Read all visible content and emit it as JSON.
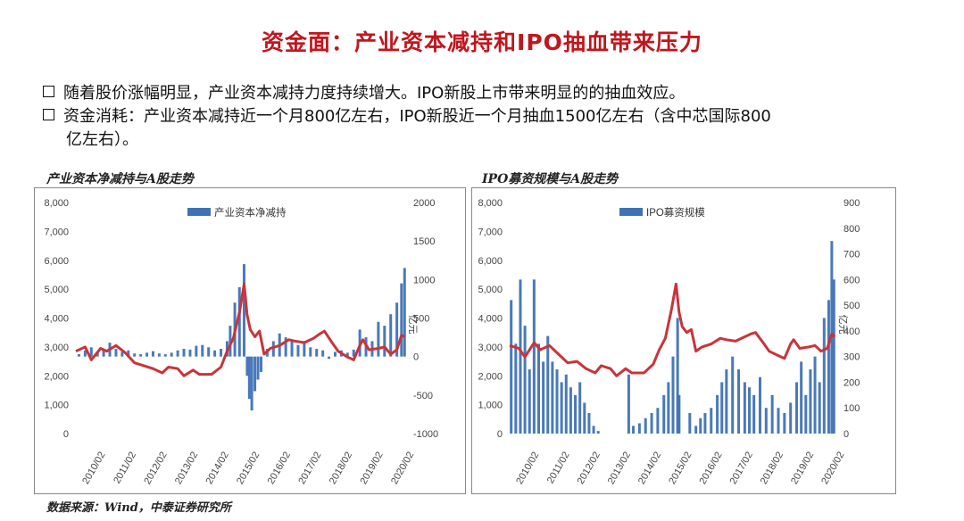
{
  "header": {
    "title": "资金面：产业资本减持和IPO抽血带来压力",
    "bullet1": "随着股价涨幅明显，产业资本减持力度持续增大。IPO新股上市带来明显的的抽血效应。",
    "bullet2": "资金消耗：产业资本减持近一个月800亿左右，IPO新股近一个月抽血1500亿左右（含中芯国际800",
    "bullet2_cont": "亿左右）。"
  },
  "source": "数据来源：Wind，中泰证券研究所",
  "chart_data": [
    {
      "type": "bar",
      "title": "产业资本净减持与A股走势",
      "x_ticks": [
        "2010/02",
        "2011/02",
        "2012/02",
        "2013/02",
        "2014/02",
        "2015/02",
        "2016/02",
        "2017/02",
        "2018/02",
        "2019/02",
        "2020/02"
      ],
      "y_left_ticks": [
        "8,000",
        "7,000",
        "6,000",
        "5,000",
        "4,000",
        "3,000",
        "2,000",
        "1,000",
        "0"
      ],
      "y_right_ticks": [
        "2000",
        "1500",
        "1000",
        "500",
        "0",
        "-500",
        "-1000"
      ],
      "y_right_label": "亿元",
      "ylim_left": [
        0,
        8000
      ],
      "ylim_right": [
        -1000,
        2000
      ],
      "legend": "产业资本净减持",
      "legend_position": "top-center",
      "bar_color": "#3f72b5",
      "line_color": "#c8343a",
      "bars": [
        [
          2010.1,
          30
        ],
        [
          2010.3,
          80
        ],
        [
          2010.5,
          120
        ],
        [
          2010.7,
          60
        ],
        [
          2010.9,
          100
        ],
        [
          2011.1,
          180
        ],
        [
          2011.3,
          100
        ],
        [
          2011.5,
          60
        ],
        [
          2011.7,
          80
        ],
        [
          2011.9,
          40
        ],
        [
          2012.1,
          30
        ],
        [
          2012.3,
          50
        ],
        [
          2012.5,
          70
        ],
        [
          2012.7,
          40
        ],
        [
          2012.9,
          30
        ],
        [
          2013.1,
          50
        ],
        [
          2013.3,
          80
        ],
        [
          2013.5,
          100
        ],
        [
          2013.7,
          90
        ],
        [
          2013.9,
          140
        ],
        [
          2014.1,
          150
        ],
        [
          2014.3,
          120
        ],
        [
          2014.5,
          80
        ],
        [
          2014.7,
          100
        ],
        [
          2014.9,
          200
        ],
        [
          2015.0,
          400
        ],
        [
          2015.15,
          700
        ],
        [
          2015.3,
          900
        ],
        [
          2015.45,
          1200
        ],
        [
          2015.55,
          -250
        ],
        [
          2015.62,
          -550
        ],
        [
          2015.7,
          -700
        ],
        [
          2015.8,
          -450
        ],
        [
          2015.9,
          -300
        ],
        [
          2016.0,
          -200
        ],
        [
          2016.2,
          100
        ],
        [
          2016.4,
          200
        ],
        [
          2016.6,
          300
        ],
        [
          2016.8,
          250
        ],
        [
          2017.0,
          200
        ],
        [
          2017.2,
          150
        ],
        [
          2017.4,
          200
        ],
        [
          2017.6,
          120
        ],
        [
          2017.8,
          100
        ],
        [
          2018.0,
          80
        ],
        [
          2018.2,
          -30
        ],
        [
          2018.4,
          60
        ],
        [
          2018.6,
          80
        ],
        [
          2018.8,
          50
        ],
        [
          2019.0,
          90
        ],
        [
          2019.2,
          350
        ],
        [
          2019.4,
          250
        ],
        [
          2019.6,
          200
        ],
        [
          2019.8,
          450
        ],
        [
          2020.0,
          400
        ],
        [
          2020.2,
          550
        ],
        [
          2020.4,
          700
        ],
        [
          2020.55,
          950
        ],
        [
          2020.65,
          1150
        ]
      ],
      "index": [
        [
          2010.0,
          2850
        ],
        [
          2010.3,
          3000
        ],
        [
          2010.5,
          2550
        ],
        [
          2010.8,
          2950
        ],
        [
          2011.0,
          2850
        ],
        [
          2011.3,
          3050
        ],
        [
          2011.6,
          2800
        ],
        [
          2011.9,
          2450
        ],
        [
          2012.2,
          2350
        ],
        [
          2012.5,
          2250
        ],
        [
          2012.8,
          2100
        ],
        [
          2013.0,
          2300
        ],
        [
          2013.3,
          2250
        ],
        [
          2013.5,
          2000
        ],
        [
          2013.8,
          2200
        ],
        [
          2014.0,
          2050
        ],
        [
          2014.4,
          2050
        ],
        [
          2014.7,
          2300
        ],
        [
          2014.9,
          2850
        ],
        [
          2015.1,
          3300
        ],
        [
          2015.3,
          4200
        ],
        [
          2015.45,
          5178
        ],
        [
          2015.55,
          4100
        ],
        [
          2015.65,
          3600
        ],
        [
          2015.8,
          3350
        ],
        [
          2015.95,
          3550
        ],
        [
          2016.1,
          2750
        ],
        [
          2016.3,
          2950
        ],
        [
          2016.6,
          3050
        ],
        [
          2016.9,
          3250
        ],
        [
          2017.1,
          3200
        ],
        [
          2017.4,
          3150
        ],
        [
          2017.7,
          3300
        ],
        [
          2017.9,
          3450
        ],
        [
          2018.05,
          3550
        ],
        [
          2018.3,
          3150
        ],
        [
          2018.5,
          2850
        ],
        [
          2018.8,
          2650
        ],
        [
          2019.0,
          2550
        ],
        [
          2019.2,
          3050
        ],
        [
          2019.3,
          3250
        ],
        [
          2019.5,
          2900
        ],
        [
          2019.8,
          2950
        ],
        [
          2020.0,
          3000
        ],
        [
          2020.2,
          2750
        ],
        [
          2020.4,
          2900
        ],
        [
          2020.55,
          3400
        ],
        [
          2020.65,
          3350
        ]
      ]
    },
    {
      "type": "bar",
      "title": "IPO募资规模与A股走势",
      "x_ticks": [
        "2010/02",
        "2011/02",
        "2012/02",
        "2013/02",
        "2014/02",
        "2015/02",
        "2016/02",
        "2017/02",
        "2018/02",
        "2019/02",
        "2020/02"
      ],
      "y_left_ticks": [
        "8,000",
        "7,000",
        "6,000",
        "5,000",
        "4,000",
        "3,000",
        "2,000",
        "1,000",
        "0"
      ],
      "y_right_ticks": [
        "900",
        "800",
        "700",
        "600",
        "500",
        "400",
        "300",
        "200",
        "100",
        "0"
      ],
      "y_right_label": "亿元",
      "ylim_left": [
        0,
        8000
      ],
      "ylim_right": [
        0,
        900
      ],
      "legend": "IPO募资规模",
      "legend_position": "top-center",
      "bar_color": "#3f72b5",
      "line_color": "#c8343a",
      "bars": [
        [
          2010.05,
          520
        ],
        [
          2010.2,
          350
        ],
        [
          2010.35,
          600
        ],
        [
          2010.5,
          420
        ],
        [
          2010.65,
          250
        ],
        [
          2010.8,
          600
        ],
        [
          2010.95,
          350
        ],
        [
          2011.1,
          280
        ],
        [
          2011.25,
          380
        ],
        [
          2011.4,
          280
        ],
        [
          2011.55,
          250
        ],
        [
          2011.7,
          200
        ],
        [
          2011.85,
          230
        ],
        [
          2012.0,
          180
        ],
        [
          2012.15,
          150
        ],
        [
          2012.3,
          200
        ],
        [
          2012.45,
          120
        ],
        [
          2012.6,
          80
        ],
        [
          2012.75,
          30
        ],
        [
          2012.9,
          10
        ],
        [
          2013.9,
          230
        ],
        [
          2014.05,
          30
        ],
        [
          2014.25,
          40
        ],
        [
          2014.45,
          60
        ],
        [
          2014.65,
          80
        ],
        [
          2014.85,
          100
        ],
        [
          2015.05,
          150
        ],
        [
          2015.2,
          200
        ],
        [
          2015.35,
          300
        ],
        [
          2015.5,
          450
        ],
        [
          2015.55,
          150
        ],
        [
          2015.9,
          80
        ],
        [
          2016.1,
          30
        ],
        [
          2016.25,
          60
        ],
        [
          2016.4,
          80
        ],
        [
          2016.6,
          100
        ],
        [
          2016.8,
          150
        ],
        [
          2016.95,
          200
        ],
        [
          2017.1,
          250
        ],
        [
          2017.3,
          300
        ],
        [
          2017.5,
          250
        ],
        [
          2017.7,
          200
        ],
        [
          2017.85,
          180
        ],
        [
          2018.0,
          150
        ],
        [
          2018.2,
          220
        ],
        [
          2018.4,
          100
        ],
        [
          2018.6,
          150
        ],
        [
          2018.8,
          100
        ],
        [
          2019.0,
          80
        ],
        [
          2019.2,
          120
        ],
        [
          2019.4,
          200
        ],
        [
          2019.55,
          280
        ],
        [
          2019.7,
          150
        ],
        [
          2019.85,
          250
        ],
        [
          2020.0,
          300
        ],
        [
          2020.15,
          200
        ],
        [
          2020.3,
          450
        ],
        [
          2020.45,
          520
        ],
        [
          2020.55,
          750
        ],
        [
          2020.62,
          600
        ]
      ],
      "index": [
        [
          2010.0,
          3050
        ],
        [
          2010.3,
          2950
        ],
        [
          2010.5,
          2650
        ],
        [
          2010.8,
          3150
        ],
        [
          2011.0,
          2900
        ],
        [
          2011.3,
          3050
        ],
        [
          2011.6,
          2750
        ],
        [
          2011.9,
          2450
        ],
        [
          2012.2,
          2500
        ],
        [
          2012.5,
          2250
        ],
        [
          2012.8,
          2100
        ],
        [
          2013.0,
          2350
        ],
        [
          2013.3,
          2250
        ],
        [
          2013.5,
          2000
        ],
        [
          2013.8,
          2250
        ],
        [
          2014.0,
          2100
        ],
        [
          2014.4,
          2100
        ],
        [
          2014.7,
          2400
        ],
        [
          2014.9,
          2900
        ],
        [
          2015.1,
          3300
        ],
        [
          2015.3,
          4300
        ],
        [
          2015.45,
          5178
        ],
        [
          2015.55,
          4200
        ],
        [
          2015.65,
          3700
        ],
        [
          2015.8,
          3500
        ],
        [
          2015.95,
          3600
        ],
        [
          2016.1,
          2850
        ],
        [
          2016.3,
          3000
        ],
        [
          2016.6,
          3100
        ],
        [
          2016.9,
          3300
        ],
        [
          2017.1,
          3250
        ],
        [
          2017.4,
          3200
        ],
        [
          2017.7,
          3350
        ],
        [
          2017.9,
          3450
        ],
        [
          2018.05,
          3500
        ],
        [
          2018.3,
          3150
        ],
        [
          2018.5,
          2850
        ],
        [
          2018.8,
          2700
        ],
        [
          2019.0,
          2600
        ],
        [
          2019.2,
          3100
        ],
        [
          2019.3,
          3250
        ],
        [
          2019.5,
          2950
        ],
        [
          2019.8,
          3000
        ],
        [
          2020.0,
          3050
        ],
        [
          2020.2,
          2850
        ],
        [
          2020.4,
          2950
        ],
        [
          2020.55,
          3450
        ],
        [
          2020.65,
          3350
        ]
      ]
    }
  ]
}
